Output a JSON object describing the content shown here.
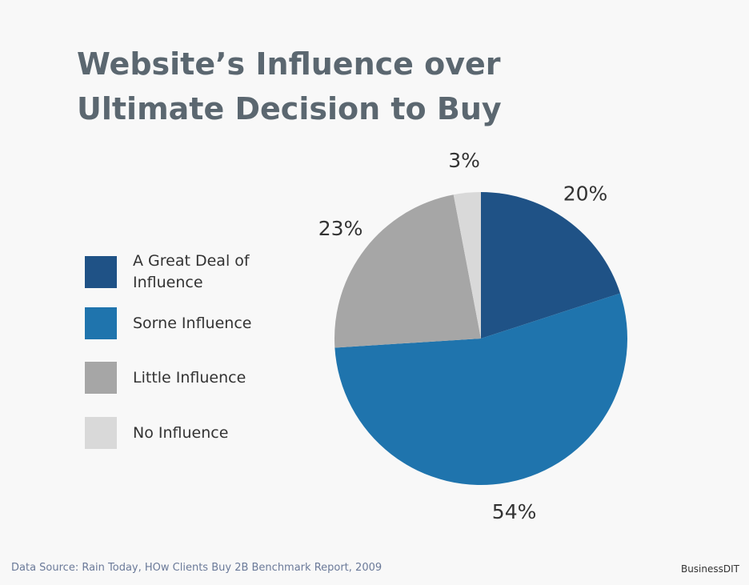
{
  "chart_data": {
    "type": "pie",
    "title": "Website’s Influence over Ultimate Decision to Buy",
    "categories": [
      "A Great Deal of Influence",
      "Sorne Influence",
      "Little Influence",
      "No Influence"
    ],
    "values": [
      20,
      54,
      23,
      3
    ],
    "value_labels": [
      "20%",
      "54%",
      "23%",
      "3%"
    ],
    "colors": [
      "#1f5286",
      "#1f74ad",
      "#a6a6a6",
      "#d9d9d9"
    ],
    "source": "Data Source: Rain Today, HOw Clients Buy 2B Benchmark Report, 2009",
    "brand": "BusinessDIT"
  }
}
